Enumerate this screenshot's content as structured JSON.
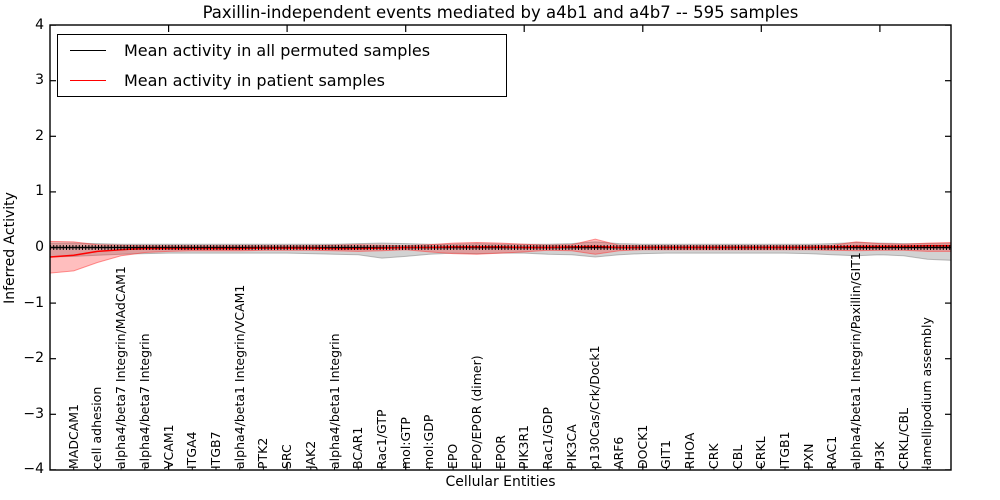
{
  "chart_data": {
    "type": "line",
    "title": "Paxillin-independent events mediated by a4b1 and a4b7 -- 595 samples",
    "xlabel": "Cellular Entities",
    "ylabel": "Inferred Activity",
    "ylim": [
      -4,
      4
    ],
    "grid": false,
    "legend_position": "upper left",
    "yticks": [
      [
        4,
        "4"
      ],
      [
        3,
        "3"
      ],
      [
        2,
        "2"
      ],
      [
        1,
        "1"
      ],
      [
        0,
        "0"
      ],
      [
        -1,
        "−1"
      ],
      [
        -2,
        "−2"
      ],
      [
        -3,
        "−3"
      ],
      [
        -4,
        "−4"
      ]
    ],
    "categories": [
      "MADCAM1",
      "cell adhesion",
      "alpha4/beta7 Integrin/MAdCAM1",
      "alpha4/beta7 Integrin",
      "VCAM1",
      "ITGA4",
      "ITGB7",
      "alpha4/beta1 Integrin/VCAM1",
      "PTK2",
      "SRC",
      "JAK2",
      "alpha4/beta1 Integrin",
      "BCAR1",
      "Rac1/GTP",
      "mol:GTP",
      "mol:GDP",
      "EPO",
      "EPO/EPOR (dimer)",
      "EPOR",
      "PIK3R1",
      "Rac1/GDP",
      "PIK3CA",
      "p130Cas/Crk/Dock1",
      "ARF6",
      "DOCK1",
      "GIT1",
      "RHOA",
      "CRK",
      "CBL",
      "CRKL",
      "ITGB1",
      "PXN",
      "RAC1",
      "alpha4/beta1 Integrin/Paxillin/GIT1",
      "PI3K",
      "CRKL/CBL",
      "lamellipodium assembly"
    ],
    "series": [
      {
        "name": "Mean activity in all permuted samples",
        "color": "#000000",
        "band_fill": "rgba(125,125,125,0.35)",
        "band_edge": "rgba(125,125,125,0.5)",
        "values": [
          0,
          0,
          0,
          0,
          0,
          0,
          0,
          0,
          0,
          0,
          0,
          0,
          0,
          0,
          0,
          0,
          0,
          0,
          0,
          0,
          0,
          0,
          0,
          0,
          0,
          0,
          0,
          0,
          0,
          0,
          0,
          0,
          0,
          0,
          0,
          0,
          0
        ],
        "upper": [
          0.08,
          0.07,
          0.06,
          0.06,
          0.06,
          0.06,
          0.06,
          0.06,
          0.06,
          0.06,
          0.06,
          0.06,
          0.07,
          0.08,
          0.07,
          0.06,
          0.06,
          0.07,
          0.06,
          0.06,
          0.06,
          0.07,
          0.1,
          0.07,
          0.06,
          0.06,
          0.06,
          0.06,
          0.06,
          0.06,
          0.06,
          0.06,
          0.07,
          0.09,
          0.08,
          0.07,
          0.07
        ],
        "lower": [
          -0.16,
          -0.14,
          -0.12,
          -0.11,
          -0.1,
          -0.1,
          -0.1,
          -0.1,
          -0.1,
          -0.1,
          -0.11,
          -0.12,
          -0.13,
          -0.19,
          -0.16,
          -0.12,
          -0.1,
          -0.11,
          -0.1,
          -0.1,
          -0.12,
          -0.13,
          -0.17,
          -0.13,
          -0.11,
          -0.1,
          -0.1,
          -0.1,
          -0.1,
          -0.1,
          -0.1,
          -0.11,
          -0.13,
          -0.15,
          -0.13,
          -0.15,
          -0.21
        ],
        "edges": {
          "start": {
            "value": 0,
            "upper": 0.08,
            "lower": -0.17
          },
          "end": {
            "value": 0,
            "upper": 0.07,
            "lower": -0.23
          }
        },
        "markers": true
      },
      {
        "name": "Mean activity in patient samples",
        "color": "#ff0000",
        "band_fill": "rgba(255,40,40,0.30)",
        "band_edge": "rgba(255,60,60,0.55)",
        "values": [
          -0.14,
          -0.07,
          -0.04,
          -0.02,
          -0.02,
          -0.02,
          -0.02,
          -0.02,
          -0.01,
          -0.01,
          -0.01,
          -0.02,
          -0.02,
          -0.01,
          0,
          0,
          0.01,
          0.01,
          0.01,
          0,
          0,
          0.01,
          0.02,
          0,
          0,
          0,
          0,
          0,
          0,
          0,
          0,
          0,
          0.01,
          0.02,
          0.02,
          0.02,
          0.03
        ],
        "upper": [
          0.1,
          0.05,
          0.04,
          0.03,
          0.03,
          0.03,
          0.03,
          0.03,
          0.03,
          0.03,
          0.03,
          0.04,
          0.05,
          0.04,
          0.03,
          0.05,
          0.08,
          0.09,
          0.08,
          0.06,
          0.04,
          0.05,
          0.15,
          0.04,
          0.03,
          0.03,
          0.03,
          0.03,
          0.03,
          0.03,
          0.03,
          0.03,
          0.04,
          0.1,
          0.07,
          0.06,
          0.08
        ],
        "lower": [
          -0.42,
          -0.27,
          -0.15,
          -0.09,
          -0.07,
          -0.06,
          -0.06,
          -0.06,
          -0.05,
          -0.05,
          -0.05,
          -0.06,
          -0.07,
          -0.06,
          -0.04,
          -0.08,
          -0.11,
          -0.12,
          -0.1,
          -0.08,
          -0.05,
          -0.06,
          -0.12,
          -0.06,
          -0.04,
          -0.04,
          -0.04,
          -0.04,
          -0.04,
          -0.04,
          -0.04,
          -0.04,
          -0.05,
          -0.06,
          -0.05,
          -0.05,
          -0.07
        ],
        "edges": {
          "start": {
            "value": -0.17,
            "upper": 0.11,
            "lower": -0.46
          },
          "end": {
            "value": 0.03,
            "upper": 0.09,
            "lower": -0.07
          }
        },
        "markers": false
      }
    ]
  }
}
